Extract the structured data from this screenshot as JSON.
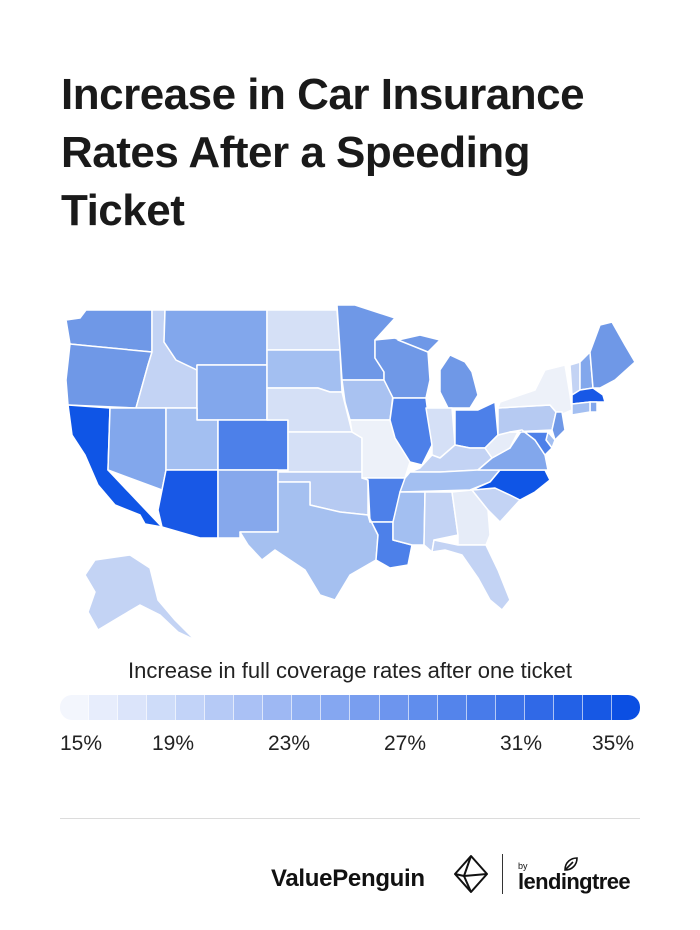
{
  "title_lines": [
    "Increase in Car Insurance",
    "Rates After a Speeding",
    "Ticket"
  ],
  "legend": {
    "title": "Increase in full coverage rates after one ticket",
    "min": 15,
    "max": 35,
    "low_color": "#f3f6fd",
    "high_color": "#0b4fe3",
    "ticks": [
      "15%",
      "19%",
      "23%",
      "27%",
      "31%",
      "35%"
    ]
  },
  "state_colors": {
    "WA": "#6f98e7",
    "OR": "#6f98e7",
    "CA": "#0f55e6",
    "ID": "#c3d3f4",
    "NV": "#82a7ec",
    "MT": "#82a7ec",
    "WY": "#82a7ec",
    "UT": "#a3bff1",
    "AZ": "#1858e6",
    "CO": "#4d80e9",
    "NM": "#86a8ec",
    "ND": "#d5e0f6",
    "SD": "#a3bff1",
    "NE": "#d5e0f6",
    "KS": "#d5e0f6",
    "OK": "#b6caf2",
    "TX": "#a5c0f0",
    "MN": "#6f98e7",
    "IA": "#a9c2f1",
    "MO": "#edf1f9",
    "AR": "#4d80e9",
    "LA": "#4d80e9",
    "WI": "#6f98e7",
    "IL": "#4d80e9",
    "MI": "#6f98e7",
    "IN": "#d5e0f6",
    "OH": "#4d80e9",
    "KY": "#c3d3f4",
    "TN": "#a3bff1",
    "MS": "#a3bff1",
    "AL": "#c3d3f4",
    "GA": "#e6ecf8",
    "FL": "#c3d3f4",
    "SC": "#c3d3f4",
    "NC": "#0f55e6",
    "VA": "#82a7ec",
    "WV": "#e6ecf8",
    "PA": "#b6caf2",
    "NY": "#edf1f9",
    "ME": "#6f98e7",
    "NH": "#82a7ec",
    "VT": "#c3d3f4",
    "MA": "#1858e6",
    "RI": "#82a7ec",
    "CT": "#a3bff1",
    "NJ": "#6f98e7",
    "DE": "#a3bff1",
    "MD": "#4d80e9",
    "AK": "#c3d3f4"
  },
  "brand": {
    "valuepenguin": "ValuePenguin",
    "by": "by",
    "lendingtree": "lendingtree"
  }
}
